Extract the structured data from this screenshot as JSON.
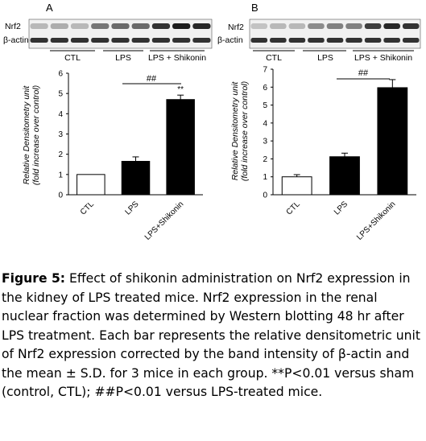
{
  "colors": {
    "bar_ctl": "#ffffff",
    "bar_lps": "#000000",
    "bar_shik": "#000000",
    "blot_bg": "#f1f1f1"
  },
  "panels": [
    {
      "letter": "A",
      "blot": {
        "row1": "Nrf2",
        "row2": "β-actin",
        "groups": [
          "CTL",
          "LPS",
          "LPS + Shikonin"
        ]
      },
      "sig_bracket": "##"
    },
    {
      "letter": "B",
      "blot": {
        "row1": "Nrf2",
        "row2": "β-actin",
        "groups": [
          "CTL",
          "LPS",
          "LPS + Shikonin"
        ]
      },
      "sig_bracket": "##"
    }
  ],
  "chart_data": [
    {
      "type": "bar",
      "categories": [
        "CTL",
        "LPS",
        "LPS+Shikonin"
      ],
      "values": [
        1.0,
        1.65,
        4.7
      ],
      "errors": [
        0,
        0.22,
        0.22
      ],
      "annotations": [
        "",
        "",
        "**"
      ],
      "ylabel": "Relative Densitometry unit",
      "ylabel2": "(fold increase over control)",
      "ylim": [
        0,
        6
      ],
      "yticks": [
        "0",
        "1",
        "2",
        "3",
        "4",
        "5",
        "6"
      ],
      "grid": false
    },
    {
      "type": "bar",
      "categories": [
        "CTL",
        "LPS",
        "LPS+Shikonin"
      ],
      "values": [
        1.0,
        2.12,
        5.97
      ],
      "errors": [
        0.12,
        0.2,
        0.45
      ],
      "annotations": [
        "",
        "",
        ""
      ],
      "ylabel": "Relative Densitometry unit",
      "ylabel2": "(fold increase over control)",
      "ylim": [
        0,
        7
      ],
      "yticks": [
        "0",
        "1",
        "2",
        "3",
        "4",
        "5",
        "6",
        "7"
      ],
      "grid": false
    }
  ],
  "caption": {
    "lead": "Figure 5:",
    "body": " Effect of shikonin administration on Nrf2 expression in the kidney of LPS treated mice. Nrf2 expression in the renal nuclear fraction was determined by Western blotting 48 hr after LPS treatment. Each bar represents the relative densitometric unit of Nrf2 expression corrected by the band intensity of β-actin and the mean ± S.D. for 3 mice in each group. **P<0.01 versus sham (control, CTL); ##P<0.01 versus LPS-treated mice."
  }
}
